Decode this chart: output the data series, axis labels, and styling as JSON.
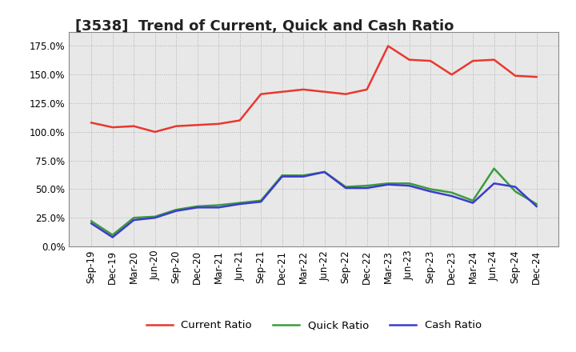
{
  "title": "[3538]  Trend of Current, Quick and Cash Ratio",
  "labels": [
    "Sep-19",
    "Dec-19",
    "Mar-20",
    "Jun-20",
    "Sep-20",
    "Dec-20",
    "Mar-21",
    "Jun-21",
    "Sep-21",
    "Dec-21",
    "Mar-22",
    "Jun-22",
    "Sep-22",
    "Dec-22",
    "Mar-23",
    "Jun-23",
    "Sep-23",
    "Dec-23",
    "Mar-24",
    "Jun-24",
    "Sep-24",
    "Dec-24"
  ],
  "current_ratio": [
    1.08,
    1.04,
    1.05,
    1.0,
    1.05,
    1.06,
    1.07,
    1.1,
    1.33,
    1.35,
    1.37,
    1.35,
    1.33,
    1.37,
    1.75,
    1.63,
    1.62,
    1.5,
    1.62,
    1.63,
    1.49,
    1.48
  ],
  "quick_ratio": [
    0.22,
    0.1,
    0.25,
    0.26,
    0.32,
    0.35,
    0.36,
    0.38,
    0.4,
    0.62,
    0.62,
    0.65,
    0.52,
    0.53,
    0.55,
    0.55,
    0.5,
    0.47,
    0.4,
    0.68,
    0.48,
    0.37
  ],
  "cash_ratio": [
    0.2,
    0.08,
    0.23,
    0.25,
    0.31,
    0.34,
    0.34,
    0.37,
    0.39,
    0.61,
    0.61,
    0.65,
    0.51,
    0.51,
    0.54,
    0.53,
    0.48,
    0.44,
    0.38,
    0.55,
    0.52,
    0.35
  ],
  "current_color": "#e8382f",
  "quick_color": "#3c9c3c",
  "cash_color": "#3c3ccc",
  "ylim": [
    0.0,
    1.875
  ],
  "yticks": [
    0.0,
    0.25,
    0.5,
    0.75,
    1.0,
    1.25,
    1.5,
    1.75
  ],
  "background_color": "#ffffff",
  "plot_bg_color": "#e8e8e8",
  "grid_color": "#b0b0b0",
  "title_fontsize": 13,
  "axis_fontsize": 8.5,
  "legend_fontsize": 9.5,
  "line_width": 1.8
}
